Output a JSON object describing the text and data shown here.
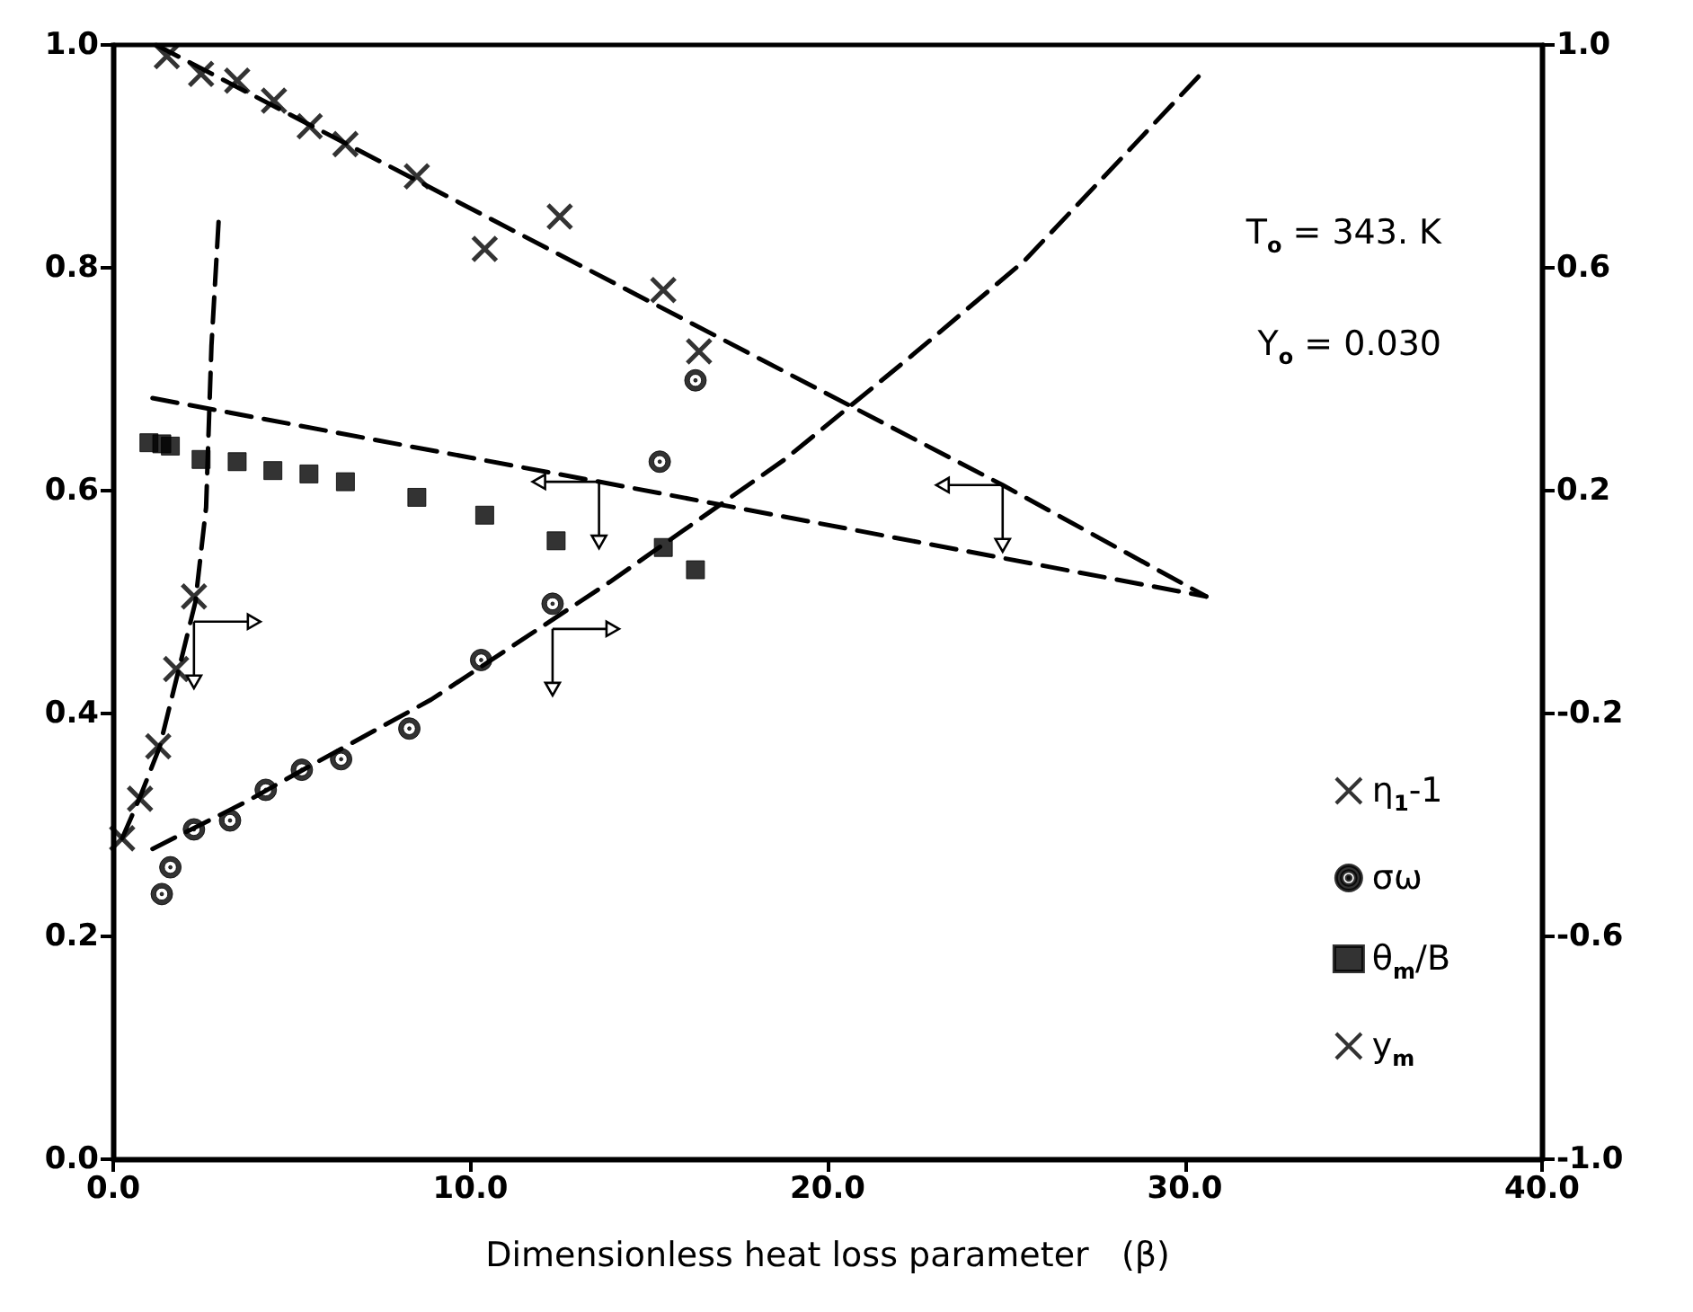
{
  "chart_data": {
    "type": "scatter",
    "xlabel": "Dimensionless heat loss parameter   (β)",
    "xlim": [
      0,
      40
    ],
    "xticks": [
      {
        "value": 0,
        "label": "0.0"
      },
      {
        "value": 10,
        "label": "10.0"
      },
      {
        "value": 20,
        "label": "20.0"
      },
      {
        "value": 30,
        "label": "30.0"
      },
      {
        "value": 40,
        "label": "40.0"
      }
    ],
    "ylim": [
      0,
      1
    ],
    "yticks": [
      {
        "value": 0,
        "label": "0.0"
      },
      {
        "value": 0.2,
        "label": "0.2"
      },
      {
        "value": 0.4,
        "label": "0.4"
      },
      {
        "value": 0.6,
        "label": "0.6"
      },
      {
        "value": 0.8,
        "label": "0.8"
      },
      {
        "value": 1,
        "label": "1.0"
      }
    ],
    "y2lim": [
      -1,
      1
    ],
    "y2ticks": [
      {
        "value": -1,
        "label": "-1.0"
      },
      {
        "value": -0.6,
        "label": "-0.6"
      },
      {
        "value": -0.2,
        "label": "-0.2"
      },
      {
        "value": 0.2,
        "label": "0.2"
      },
      {
        "value": 0.6,
        "label": "0.6"
      },
      {
        "value": 1,
        "label": "1.0"
      }
    ],
    "grid": false,
    "legend": "bottom right",
    "annotations": [
      "T$_{o}$ = 343. K",
      "Y$_{o}$ = 0.030"
    ],
    "series": [
      {
        "name": "η$_{1}$-1",
        "axis": "y2",
        "marker": "cross",
        "color": "#000000",
        "x": [
          0.25,
          0.75,
          1.26,
          1.76,
          2.26
        ],
        "values": [
          -0.424,
          -0.353,
          -0.259,
          -0.12,
          0.01
        ]
      },
      {
        "type": "line",
        "axis": "y2",
        "line_style": "dashed",
        "marker": "none",
        "color": "#000000",
        "x": [
          0.25,
          0.75,
          1.3,
          1.8,
          2.3,
          2.6,
          2.75,
          2.95
        ],
        "values": [
          -0.424,
          -0.35,
          -0.26,
          -0.13,
          0.0,
          0.17,
          0.46,
          0.683
        ]
      },
      {
        "name": "σω",
        "axis": "y2",
        "marker": "circle",
        "color": "#000000",
        "x": [
          1.36,
          1.6,
          2.26,
          3.27,
          4.27,
          5.28,
          6.38,
          8.29,
          10.3,
          12.3,
          15.3,
          16.3
        ],
        "values": [
          -0.524,
          -0.476,
          -0.408,
          -0.392,
          -0.337,
          -0.301,
          -0.282,
          -0.227,
          -0.104,
          -0.003,
          0.252,
          0.398
        ]
      },
      {
        "type": "line",
        "axis": "y2",
        "line_style": "dashed",
        "marker": "none",
        "color": "#000000",
        "x": [
          1.1,
          3.7,
          5.4,
          8.9,
          13.9,
          18.8,
          22.2,
          25.5,
          28.6,
          30.6
        ],
        "values": [
          -0.443,
          -0.359,
          -0.298,
          -0.175,
          0.036,
          0.256,
          0.434,
          0.612,
          0.822,
          0.958
        ]
      },
      {
        "name": "θ$_{m}$/B",
        "axis": "y",
        "marker": "square",
        "color": "#000000",
        "x": [
          1.0,
          1.36,
          1.6,
          2.46,
          3.47,
          4.47,
          5.48,
          6.5,
          8.5,
          10.4,
          12.4,
          15.4,
          16.3
        ],
        "values": [
          0.643,
          0.642,
          0.64,
          0.628,
          0.626,
          0.618,
          0.615,
          0.608,
          0.594,
          0.578,
          0.555,
          0.549,
          0.529
        ]
      },
      {
        "type": "line",
        "axis": "y",
        "line_style": "dashed",
        "marker": "none",
        "color": "#000000",
        "x": [
          1.1,
          13.6,
          30.6
        ],
        "values": [
          0.683,
          0.608,
          0.505
        ]
      },
      {
        "name": "y$_{m}$",
        "axis": "y",
        "marker": "cross",
        "color": "#000000",
        "x": [
          1.5,
          2.46,
          3.47,
          4.5,
          5.5,
          6.5,
          8.5,
          10.4,
          12.5,
          15.4,
          16.4
        ],
        "values": [
          0.99,
          0.974,
          0.968,
          0.95,
          0.927,
          0.911,
          0.882,
          0.817,
          0.846,
          0.78,
          0.725
        ]
      },
      {
        "type": "line",
        "axis": "y",
        "line_style": "dashed",
        "marker": "none",
        "color": "#000000",
        "x": [
          1.2,
          24.9,
          30.6
        ],
        "values": [
          1.0,
          0.605,
          0.505
        ]
      }
    ]
  }
}
